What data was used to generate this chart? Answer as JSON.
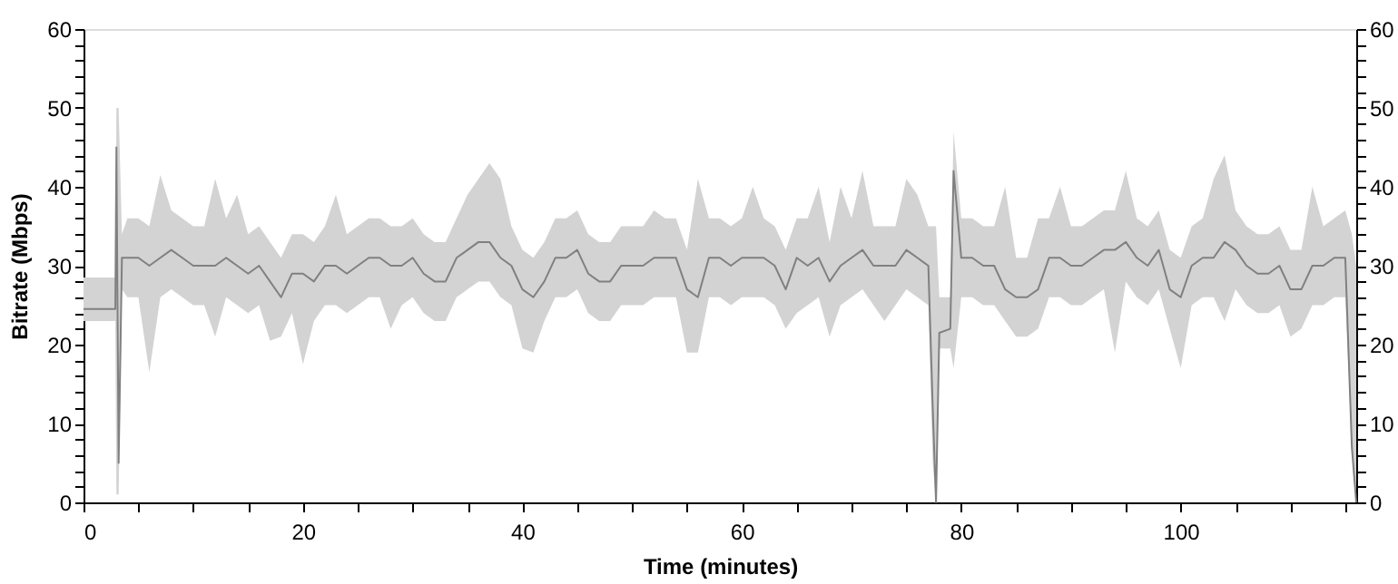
{
  "chart_data": {
    "type": "line",
    "xlabel": "Time (minutes)",
    "ylabel": "Bitrate (Mbps)",
    "xlim": [
      0,
      116
    ],
    "xticks": [
      0,
      {
        "value": 5,
        "label": null
      },
      {
        "value": 10,
        "label": null
      },
      {
        "value": 15,
        "label": null
      },
      20,
      {
        "value": 25,
        "label": null
      },
      {
        "value": 30,
        "label": null
      },
      {
        "value": 35,
        "label": null
      },
      40,
      {
        "value": 45,
        "label": null
      },
      {
        "value": 50,
        "label": null
      },
      {
        "value": 55,
        "label": null
      },
      60,
      {
        "value": 65,
        "label": null
      },
      {
        "value": 70,
        "label": null
      },
      {
        "value": 75,
        "label": null
      },
      80,
      {
        "value": 85,
        "label": null
      },
      {
        "value": 90,
        "label": null
      },
      {
        "value": 95,
        "label": null
      },
      100,
      {
        "value": 105,
        "label": null
      },
      {
        "value": 110,
        "label": null
      },
      {
        "value": 115,
        "label": null
      }
    ],
    "ylim": [
      0,
      60
    ],
    "yticks": [
      0,
      {
        "value": 2,
        "label": null
      },
      {
        "value": 4,
        "label": null
      },
      {
        "value": 6,
        "label": null
      },
      {
        "value": 8,
        "label": null
      },
      10,
      {
        "value": 12,
        "label": null
      },
      {
        "value": 14,
        "label": null
      },
      {
        "value": 16,
        "label": null
      },
      {
        "value": 18,
        "label": null
      },
      20,
      {
        "value": 22,
        "label": null
      },
      {
        "value": 24,
        "label": null
      },
      {
        "value": 26,
        "label": null
      },
      {
        "value": 28,
        "label": null
      },
      30,
      {
        "value": 32,
        "label": null
      },
      {
        "value": 34,
        "label": null
      },
      {
        "value": 36,
        "label": null
      },
      {
        "value": 38,
        "label": null
      },
      40,
      {
        "value": 42,
        "label": null
      },
      {
        "value": 44,
        "label": null
      },
      {
        "value": 46,
        "label": null
      },
      {
        "value": 48,
        "label": null
      },
      50,
      {
        "value": 52,
        "label": null
      },
      {
        "value": 54,
        "label": null
      },
      {
        "value": 56,
        "label": null
      },
      {
        "value": 58,
        "label": null
      },
      60
    ],
    "y2lim": [
      0,
      60
    ],
    "y2ticks": [
      0,
      {
        "value": 2,
        "label": null
      },
      {
        "value": 4,
        "label": null
      },
      {
        "value": 6,
        "label": null
      },
      {
        "value": 8,
        "label": null
      },
      10,
      {
        "value": 12,
        "label": null
      },
      {
        "value": 14,
        "label": null
      },
      {
        "value": 16,
        "label": null
      },
      {
        "value": 18,
        "label": null
      },
      20,
      {
        "value": 22,
        "label": null
      },
      {
        "value": 24,
        "label": null
      },
      {
        "value": 26,
        "label": null
      },
      {
        "value": 28,
        "label": null
      },
      30,
      {
        "value": 32,
        "label": null
      },
      {
        "value": 34,
        "label": null
      },
      {
        "value": 36,
        "label": null
      },
      {
        "value": 38,
        "label": null
      },
      40,
      {
        "value": 42,
        "label": null
      },
      {
        "value": 44,
        "label": null
      },
      {
        "value": 46,
        "label": null
      },
      {
        "value": 48,
        "label": null
      },
      50,
      {
        "value": 52,
        "label": null
      },
      {
        "value": 54,
        "label": null
      },
      {
        "value": 56,
        "label": null
      },
      {
        "value": 58,
        "label": null
      },
      60
    ],
    "grid": false,
    "marker": "none",
    "line_style": "solid",
    "series": [
      {
        "color": "#808080",
        "x": [
          0,
          1,
          2,
          2.9,
          3,
          3.2,
          3.5,
          4,
          5,
          6,
          7,
          8,
          9,
          10,
          11,
          12,
          13,
          14,
          15,
          16,
          17,
          18,
          19,
          20,
          21,
          22,
          23,
          24,
          25,
          26,
          27,
          28,
          29,
          30,
          31,
          32,
          33,
          34,
          35,
          36,
          37,
          38,
          39,
          40,
          41,
          42,
          43,
          44,
          45,
          46,
          47,
          48,
          49,
          50,
          51,
          52,
          53,
          54,
          55,
          56,
          57,
          58,
          59,
          60,
          61,
          62,
          63,
          64,
          65,
          66,
          67,
          68,
          69,
          70,
          71,
          72,
          73,
          74,
          75,
          76,
          77,
          77.4,
          77.7,
          78,
          79,
          79.3,
          80,
          81,
          82,
          83,
          84,
          85,
          86,
          87,
          88,
          89,
          90,
          91,
          92,
          93,
          94,
          95,
          96,
          97,
          98,
          99,
          100,
          101,
          102,
          103,
          104,
          105,
          106,
          107,
          108,
          109,
          110,
          111,
          112,
          113,
          114,
          115,
          115.6,
          116
        ],
        "values": [
          24.5,
          24.5,
          24.5,
          24.5,
          45,
          5,
          31,
          31,
          31,
          30,
          31,
          32,
          31,
          30,
          30,
          30,
          31,
          30,
          29,
          30,
          28,
          26,
          29,
          29,
          28,
          30,
          30,
          29,
          30,
          31,
          31,
          30,
          30,
          31,
          29,
          28,
          28,
          31,
          32,
          33,
          33,
          31,
          30,
          27,
          26,
          28,
          31,
          31,
          32,
          29,
          28,
          28,
          30,
          30,
          30,
          31,
          31,
          31,
          27,
          26,
          31,
          31,
          30,
          31,
          31,
          31,
          30,
          27,
          31,
          30,
          31,
          28,
          30,
          31,
          32,
          30,
          30,
          30,
          32,
          31,
          30,
          12,
          0,
          21.5,
          22,
          42,
          31,
          31,
          30,
          30,
          27,
          26,
          26,
          27,
          31,
          31,
          30,
          30,
          31,
          32,
          32,
          33,
          31,
          30,
          32,
          27,
          26,
          30,
          31,
          31,
          33,
          32,
          30,
          29,
          29,
          30,
          27,
          27,
          30,
          30,
          31,
          31,
          7,
          0
        ],
        "lower": [
          23,
          23,
          23,
          23,
          1,
          1,
          27,
          26,
          26,
          16.5,
          26,
          27,
          26,
          25,
          25,
          21,
          26,
          25,
          24,
          25,
          20.5,
          21,
          24,
          17.5,
          23,
          25,
          25,
          24,
          25,
          26,
          26,
          22,
          25,
          26,
          24,
          23,
          23,
          26,
          27,
          28,
          28,
          26,
          25,
          19.5,
          19,
          23,
          26,
          26,
          27,
          24,
          23,
          23,
          25,
          25,
          25,
          26,
          26,
          26,
          19,
          19,
          26,
          26,
          25,
          26,
          26,
          26,
          25,
          22,
          24,
          25,
          26,
          21,
          25,
          26,
          27,
          25,
          23,
          25,
          27,
          26,
          25,
          5,
          0,
          19.5,
          19.5,
          17,
          26,
          26,
          25,
          25,
          23,
          21,
          21,
          22,
          26,
          26,
          25,
          25,
          26,
          27,
          19,
          28,
          26,
          25,
          27,
          22,
          17,
          25,
          26,
          26,
          23,
          27,
          25,
          24,
          24,
          25,
          21,
          22,
          25,
          25,
          26,
          26,
          7,
          0
        ],
        "upper": [
          28.5,
          28.5,
          28.5,
          28.5,
          50,
          50,
          34,
          36,
          36,
          35,
          41.5,
          37,
          36,
          35,
          35,
          41,
          36,
          39,
          34,
          35,
          33,
          31,
          34,
          34,
          33,
          35,
          39,
          34,
          35,
          36,
          36,
          35,
          35,
          36,
          34,
          33,
          33,
          36,
          39,
          41,
          43,
          41,
          35,
          32,
          31,
          33,
          36,
          36,
          37,
          34,
          33,
          33,
          35,
          35,
          35,
          37,
          36,
          36,
          32,
          41,
          36,
          36,
          35,
          36,
          40,
          36,
          35,
          32,
          36,
          36,
          40,
          33,
          40,
          36,
          42,
          35,
          35,
          35,
          41,
          39,
          35,
          35,
          35,
          26,
          26,
          47,
          36,
          36,
          35,
          35,
          40,
          31,
          31,
          36,
          36,
          40,
          35,
          35,
          36,
          37,
          37,
          42,
          36,
          35,
          37,
          32,
          31,
          35,
          36,
          41,
          44,
          37,
          35,
          34,
          34,
          35,
          32,
          32,
          40,
          35,
          36,
          37,
          34,
          30
        ]
      }
    ]
  }
}
